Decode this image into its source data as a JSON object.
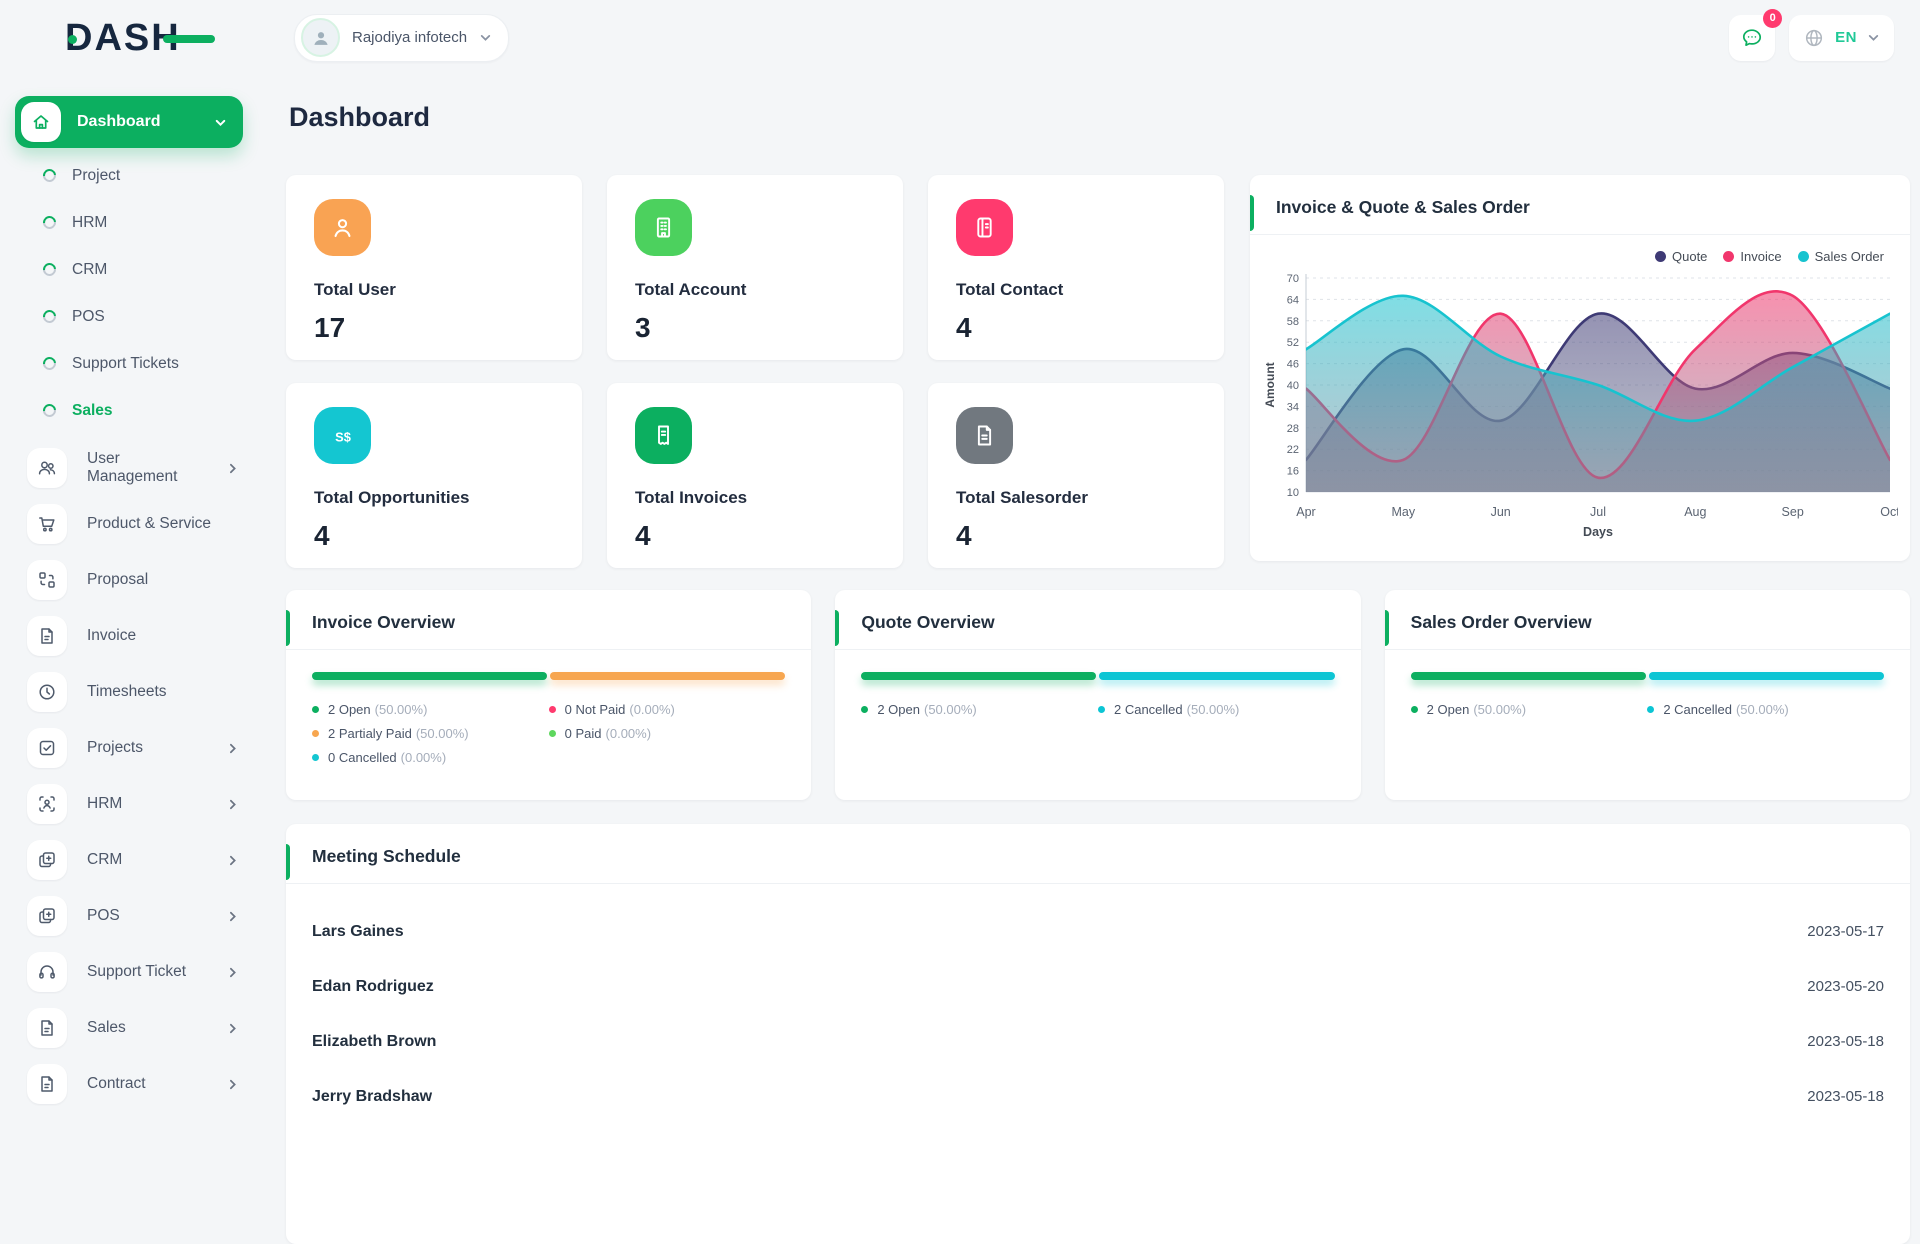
{
  "brand": {
    "name": "DASH",
    "accent_color": "#0caf60"
  },
  "topbar": {
    "workspace": {
      "name": "Rajodiya infotech"
    },
    "messages": {
      "badge": "0"
    },
    "language": {
      "code": "EN"
    }
  },
  "page": {
    "title": "Dashboard"
  },
  "sidebar": {
    "active_item": {
      "label": "Dashboard"
    },
    "sub_items": [
      {
        "label": "Project"
      },
      {
        "label": "HRM"
      },
      {
        "label": "CRM"
      },
      {
        "label": "POS"
      },
      {
        "label": "Support Tickets"
      },
      {
        "label": "Sales",
        "active": true
      }
    ],
    "menu_items": [
      {
        "label": "User Management",
        "icon": "users-icon",
        "chevron": true
      },
      {
        "label": "Product & Service",
        "icon": "cart-icon",
        "chevron": false
      },
      {
        "label": "Proposal",
        "icon": "route-icon",
        "chevron": false
      },
      {
        "label": "Invoice",
        "icon": "file-icon",
        "chevron": false
      },
      {
        "label": "Timesheets",
        "icon": "clock-icon",
        "chevron": false
      },
      {
        "label": "Projects",
        "icon": "check-square-icon",
        "chevron": true
      },
      {
        "label": "HRM",
        "icon": "scan-user-icon",
        "chevron": true
      },
      {
        "label": "CRM",
        "icon": "cards-icon",
        "chevron": true
      },
      {
        "label": "POS",
        "icon": "cards-icon",
        "chevron": true
      },
      {
        "label": "Support Ticket",
        "icon": "headset-icon",
        "chevron": true
      },
      {
        "label": "Sales",
        "icon": "file-icon",
        "chevron": true
      },
      {
        "label": "Contract",
        "icon": "file-icon",
        "chevron": true
      }
    ]
  },
  "stats": [
    {
      "label": "Total User",
      "value": "17",
      "icon": "person-icon",
      "color": "#f9a353"
    },
    {
      "label": "Total Account",
      "value": "3",
      "icon": "building-icon",
      "color": "#4cd15e"
    },
    {
      "label": "Total Contact",
      "value": "4",
      "icon": "contact-icon",
      "color": "#ff3a6e"
    },
    {
      "label": "Total Opportunities",
      "value": "4",
      "icon": "dollar-icon",
      "color": "#14c6d1"
    },
    {
      "label": "Total Invoices",
      "value": "4",
      "icon": "receipt-icon",
      "color": "#0caf60"
    },
    {
      "label": "Total Salesorder",
      "value": "4",
      "icon": "document-icon",
      "color": "#71787f"
    }
  ],
  "chart_card": {
    "title": "Invoice & Quote & Sales Order"
  },
  "chart_data": {
    "type": "area",
    "title": "Invoice & Quote & Sales Order",
    "x": [
      "Apr",
      "May",
      "Jun",
      "Jul",
      "Aug",
      "Sep",
      "Oct"
    ],
    "series": [
      {
        "name": "Quote",
        "color": "#3e3a75",
        "values": [
          19,
          50,
          30,
          60,
          39,
          49,
          39
        ]
      },
      {
        "name": "Invoice",
        "color": "#f1366c",
        "values": [
          39,
          19,
          60,
          14,
          50,
          65,
          19
        ]
      },
      {
        "name": "Sales Order",
        "color": "#17c3cf",
        "values": [
          50,
          65,
          48,
          40,
          30,
          45,
          60
        ]
      }
    ],
    "xlabel": "Days",
    "ylabel": "Amount",
    "yticks": [
      70,
      64,
      58,
      52,
      46,
      40,
      34,
      28,
      22,
      16,
      10
    ],
    "ylim": [
      10,
      70
    ],
    "grid": "horizontal-dashed",
    "legend_position": "top-right"
  },
  "overview_cards": [
    {
      "title": "Invoice Overview",
      "bar": [
        {
          "color": "#0caf60",
          "pct": 50
        },
        {
          "color": "#f7a64f",
          "pct": 50
        }
      ],
      "legend_cols": [
        [
          {
            "dot": "#0caf60",
            "label": "2 Open",
            "pct": "(50.00%)"
          },
          {
            "dot": "#f7a64f",
            "label": "2 Partialy Paid",
            "pct": "(50.00%)"
          },
          {
            "dot": "#14c6d1",
            "label": "0 Cancelled",
            "pct": "(0.00%)"
          }
        ],
        [
          {
            "dot": "#ff3a6e",
            "label": "0 Not Paid",
            "pct": "(0.00%)"
          },
          {
            "dot": "#5ed75e",
            "label": "0 Paid",
            "pct": "(0.00%)"
          }
        ]
      ]
    },
    {
      "title": "Quote Overview",
      "bar": [
        {
          "color": "#0caf60",
          "pct": 50
        },
        {
          "color": "#0cc5d4",
          "pct": 50
        }
      ],
      "legend_cols": [
        [
          {
            "dot": "#0caf60",
            "label": "2 Open",
            "pct": "(50.00%)"
          }
        ],
        [
          {
            "dot": "#0cc5d4",
            "label": "2 Cancelled",
            "pct": "(50.00%)"
          }
        ]
      ]
    },
    {
      "title": "Sales Order Overview",
      "bar": [
        {
          "color": "#0caf60",
          "pct": 50
        },
        {
          "color": "#0cc5d4",
          "pct": 50
        }
      ],
      "legend_cols": [
        [
          {
            "dot": "#0caf60",
            "label": "2 Open",
            "pct": "(50.00%)"
          }
        ],
        [
          {
            "dot": "#0cc5d4",
            "label": "2 Cancelled",
            "pct": "(50.00%)"
          }
        ]
      ]
    }
  ],
  "meeting": {
    "title": "Meeting Schedule",
    "rows": [
      {
        "name": "Lars Gaines",
        "date": "2023-05-17"
      },
      {
        "name": "Edan Rodriguez",
        "date": "2023-05-20"
      },
      {
        "name": "Elizabeth Brown",
        "date": "2023-05-18"
      },
      {
        "name": "Jerry Bradshaw",
        "date": "2023-05-18"
      }
    ]
  }
}
